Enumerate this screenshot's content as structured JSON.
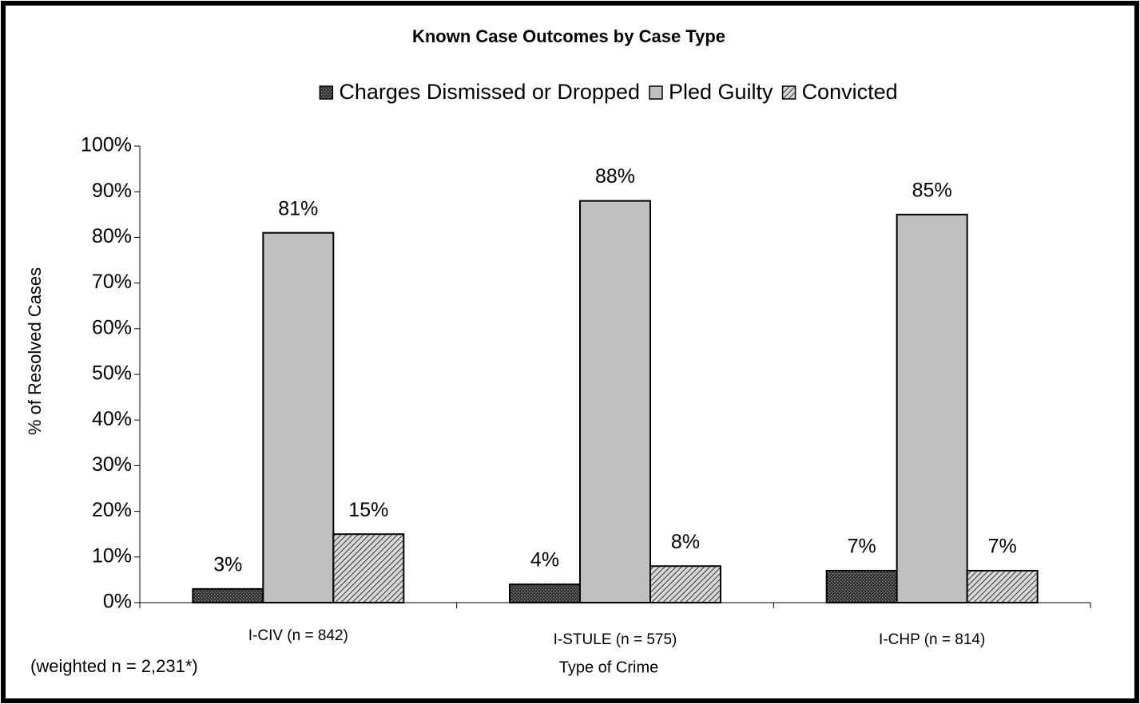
{
  "chart_data": {
    "type": "bar",
    "title": "Known Case Outcomes by Case Type",
    "categories": [
      "I-CIV (n = 842)",
      "I-STULE (n = 575)",
      "I-CHP (n = 814)"
    ],
    "series": [
      {
        "name": "Charges Dismissed or Dropped",
        "color": "#3a3a3a",
        "pattern": "dots",
        "values": [
          3,
          4,
          7
        ],
        "value_labels": [
          "3%",
          "4%",
          "7%"
        ]
      },
      {
        "name": "Pled Guilty",
        "color": "#c0c0c0",
        "pattern": "solid",
        "values": [
          81,
          88,
          85
        ],
        "value_labels": [
          "81%",
          "88%",
          "85%"
        ]
      },
      {
        "name": "Convicted",
        "color": "#808080",
        "pattern": "hatch",
        "values": [
          15,
          8,
          7
        ],
        "value_labels": [
          "15%",
          "8%",
          "7%"
        ]
      }
    ],
    "ylim": [
      0,
      100
    ],
    "yticks": [
      {
        "value": 0,
        "label": "0%"
      },
      {
        "value": 10,
        "label": "10%"
      },
      {
        "value": 20,
        "label": "20%"
      },
      {
        "value": 30,
        "label": "30%"
      },
      {
        "value": 40,
        "label": "40%"
      },
      {
        "value": 50,
        "label": "50%"
      },
      {
        "value": 60,
        "label": "60%"
      },
      {
        "value": 70,
        "label": "70%"
      },
      {
        "value": 80,
        "label": "80%"
      },
      {
        "value": 90,
        "label": "90%"
      },
      {
        "value": 100,
        "label": "100%"
      }
    ],
    "y_label": "% of Resolved Cases",
    "x_label": "Type of Crime",
    "note": "(weighted n = 2,231*)",
    "legend": "top",
    "grid": false
  }
}
